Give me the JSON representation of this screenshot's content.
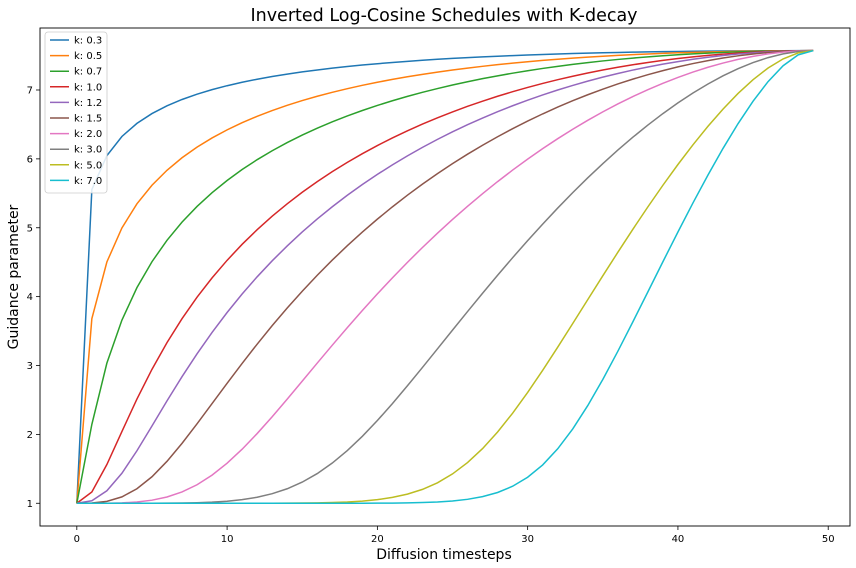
{
  "chart_data": {
    "type": "line",
    "title": "Inverted Log-Cosine Schedules with K-decay",
    "xlabel": "Diffusion timesteps",
    "ylabel": "Guidance parameter",
    "xlim": [
      -2.45,
      51.45
    ],
    "ylim": [
      0.67,
      7.9
    ],
    "xticks": [
      0,
      10,
      20,
      30,
      40,
      50
    ],
    "yticks": [
      1,
      2,
      3,
      4,
      5,
      6,
      7
    ],
    "grid": false,
    "legend_position": "top-left",
    "x": [
      0,
      1,
      2,
      3,
      4,
      5,
      6,
      7,
      8,
      9,
      10,
      11,
      12,
      13,
      14,
      15,
      16,
      17,
      18,
      19,
      20,
      21,
      22,
      23,
      24,
      25,
      26,
      27,
      28,
      29,
      30,
      31,
      32,
      33,
      34,
      35,
      36,
      37,
      38,
      39,
      40,
      41,
      42,
      43,
      44,
      45,
      46,
      47,
      48,
      49
    ],
    "params": {
      "t_max": 49,
      "y_min": 1.0,
      "y_max": 7.56,
      "b": 0.008
    },
    "series": [
      {
        "name": "k: 0.3",
        "k": 0.3,
        "color": "#1f77b4"
      },
      {
        "name": "k: 0.5",
        "k": 0.5,
        "color": "#ff7f0e"
      },
      {
        "name": "k: 0.7",
        "k": 0.7,
        "color": "#2ca02c"
      },
      {
        "name": "k: 1.0",
        "k": 1.0,
        "color": "#d62728"
      },
      {
        "name": "k: 1.2",
        "k": 1.2,
        "color": "#9467bd"
      },
      {
        "name": "k: 1.5",
        "k": 1.5,
        "color": "#8c564b"
      },
      {
        "name": "k: 2.0",
        "k": 2.0,
        "color": "#e377c2"
      },
      {
        "name": "k: 3.0",
        "k": 3.0,
        "color": "#7f7f7f"
      },
      {
        "name": "k: 5.0",
        "k": 5.0,
        "color": "#bcbd22"
      },
      {
        "name": "k: 7.0",
        "k": 7.0,
        "color": "#17becf"
      }
    ]
  }
}
